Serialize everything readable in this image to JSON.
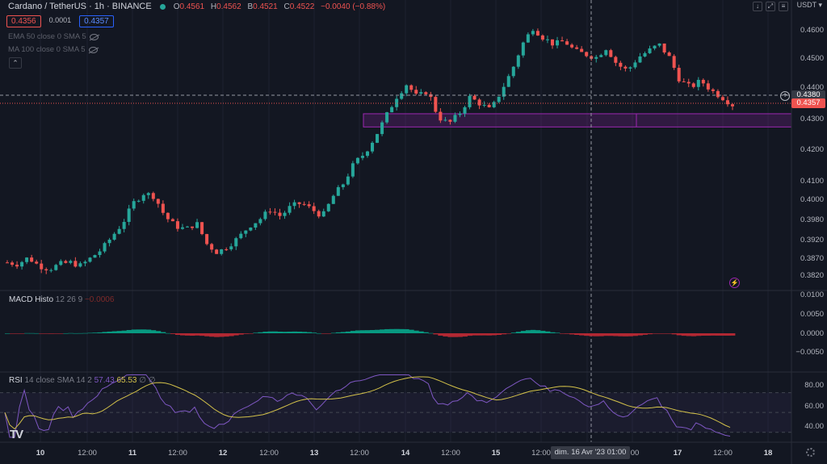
{
  "header": {
    "symbol_title": "Cardano / TetherUS · 1h · BINANCE",
    "ohlc": [
      {
        "k": "O",
        "v": "0.4561"
      },
      {
        "k": "H",
        "v": "0.4562"
      },
      {
        "k": "B",
        "v": "0.4521"
      },
      {
        "k": "C",
        "v": "0.4522"
      },
      {
        "k": "",
        "v": "−0.0040 (−0.88%)"
      }
    ],
    "sell_price": "0.4356",
    "spread": "0.0001",
    "buy_price": "0.4357",
    "indicator_ema": "EMA 50 close 0 SMA 5",
    "indicator_ma": "MA 100 close 0 SMA 5",
    "currency": "USDT",
    "tool_icons": [
      "arrow-down-icon",
      "expand-icon",
      "settings-icon"
    ]
  },
  "macd": {
    "label": "MACD Histo",
    "params": "12 26 9",
    "value": "−0.0006"
  },
  "rsi": {
    "label": "RSI",
    "params": "14 close SMA 14 2",
    "rsi_value": "57.43",
    "sma_value": "65.53",
    "symbols": "∅ ∅"
  },
  "price_axis": [
    "0.4600",
    "0.4500",
    "0.4400",
    "0.4300",
    "0.4200",
    "0.4100",
    "0.4000",
    "0.3980",
    "0.3920",
    "0.3870",
    "0.3820"
  ],
  "macd_axis": [
    "0.0100",
    "0.0050",
    "0.0000",
    "−0.0050"
  ],
  "rsi_axis": [
    "80.00",
    "60.00",
    "40.00"
  ],
  "price_tags": {
    "crosshair": "0.4380",
    "last": "0.4357"
  },
  "time_axis": [
    "10",
    "12:00",
    "11",
    "12:00",
    "12",
    "12:00",
    "13",
    "12:00",
    "14",
    "12:00",
    "15",
    "12:00",
    "00",
    "17",
    "12:00",
    "18"
  ],
  "cursor_date": "dim. 16 Avr '23   01:00",
  "colors": {
    "bg": "#131722",
    "up": "#26a69a",
    "down": "#ef5350",
    "rsi_line": "#7e57c2",
    "rsi_sma": "#d4c24a",
    "zone": "#9c27b0"
  },
  "chart_data": {
    "type": "candlestick",
    "price_close_path": [
      0.388,
      0.3875,
      0.3895,
      0.387,
      0.386,
      0.3875,
      0.388,
      0.387,
      0.3895,
      0.392,
      0.396,
      0.4,
      0.406,
      0.409,
      0.408,
      0.402,
      0.399,
      0.398,
      0.4,
      0.3935,
      0.391,
      0.393,
      0.3955,
      0.399,
      0.401,
      0.404,
      0.402,
      0.405,
      0.406,
      0.404,
      0.402,
      0.408,
      0.412,
      0.418,
      0.421,
      0.426,
      0.432,
      0.438,
      0.442,
      0.438,
      0.44,
      0.432,
      0.43,
      0.433,
      0.438,
      0.436,
      0.434,
      0.44,
      0.446,
      0.454,
      0.459,
      0.456,
      0.454,
      0.455,
      0.452,
      0.451,
      0.45,
      0.453,
      0.448,
      0.446,
      0.45,
      0.452,
      0.454,
      0.45,
      0.443,
      0.441,
      0.443,
      0.44,
      0.438,
      0.4357
    ],
    "zone": {
      "from": 0.429,
      "to": 0.433
    },
    "rsi_levels": [
      70,
      50,
      30
    ]
  }
}
